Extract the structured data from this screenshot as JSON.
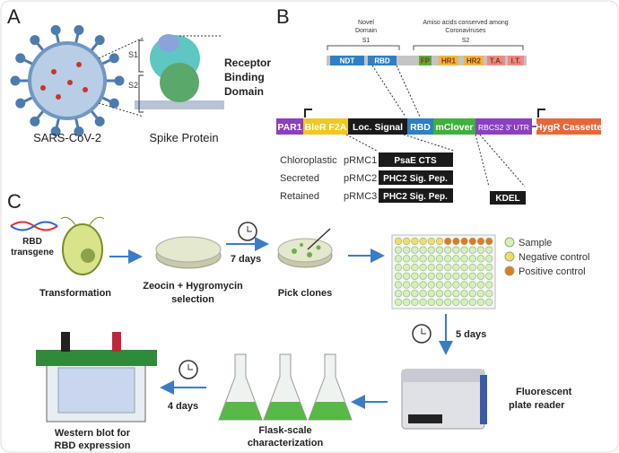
{
  "panels": {
    "a": "A",
    "b": "B",
    "c": "C"
  },
  "panel_a": {
    "virus_label": "SARS-CoV-2",
    "spike_label": "Spike Protein",
    "s1": "S1",
    "s2": "S2",
    "rbd_label": [
      "Receptor",
      "Binding",
      "Domain"
    ]
  },
  "panel_b": {
    "s1_header": [
      "Novel",
      "Domain",
      "S1"
    ],
    "s2_header": [
      "Amiso acids conserved among",
      "Coronaviruses",
      "S2"
    ],
    "domains": [
      {
        "label": "NDT",
        "color": "#2f7fc6"
      },
      {
        "label": "RBD",
        "color": "#2f7fc6"
      },
      {
        "label": "FP",
        "color": "#5aab3a"
      },
      {
        "label": "HR1",
        "color": "#f2b441"
      },
      {
        "label": "HR2",
        "color": "#f2b441"
      },
      {
        "label": "T.A.",
        "color": "#ee8a86"
      },
      {
        "label": "I.T.",
        "color": "#ee8a86"
      }
    ],
    "construct": [
      {
        "label": "PAR1",
        "color": "#8c3fc0"
      },
      {
        "label": "BleR F2A",
        "color": "#f2c81f"
      },
      {
        "label": "Loc. Signal",
        "color": "#1a1a1a"
      },
      {
        "label": "RBD",
        "color": "#2f7fc6"
      },
      {
        "label": "mClover",
        "color": "#3fb03c"
      },
      {
        "label": "RBCS2 3' UTR",
        "color": "#8c3fc0"
      },
      {
        "label": "HygR Cassette",
        "color": "#e8673a"
      }
    ],
    "variants": [
      {
        "type": "Chloroplastic",
        "plasmid": "pRMC1",
        "signal": "PsaE CTS"
      },
      {
        "type": "Secreted",
        "plasmid": "pRMC2",
        "signal": "PHC2 Sig. Pep."
      },
      {
        "type": "Retained",
        "plasmid": "pRMC3",
        "signal": "PHC2 Sig. Pep."
      }
    ],
    "kdel": "KDEL"
  },
  "panel_c": {
    "rbd_transgene": [
      "RBD",
      "transgene"
    ],
    "transformation": "Transformation",
    "selection": [
      "Zeocin + Hygromycin",
      "selection"
    ],
    "seven_days": "7 days",
    "pick_clones": "Pick clones",
    "legend": [
      {
        "label": "Sample",
        "color": "#d8eec0"
      },
      {
        "label": "Negative control",
        "color": "#f5dc6a"
      },
      {
        "label": "Positive control",
        "color": "#e07a22"
      }
    ],
    "five_days": "5 days",
    "plate_reader": [
      "Fluorescent",
      "plate reader"
    ],
    "flask": [
      "Flask-scale",
      "characterization"
    ],
    "four_days": "4 days",
    "western": [
      "Western blot for",
      "RBD expression"
    ]
  }
}
